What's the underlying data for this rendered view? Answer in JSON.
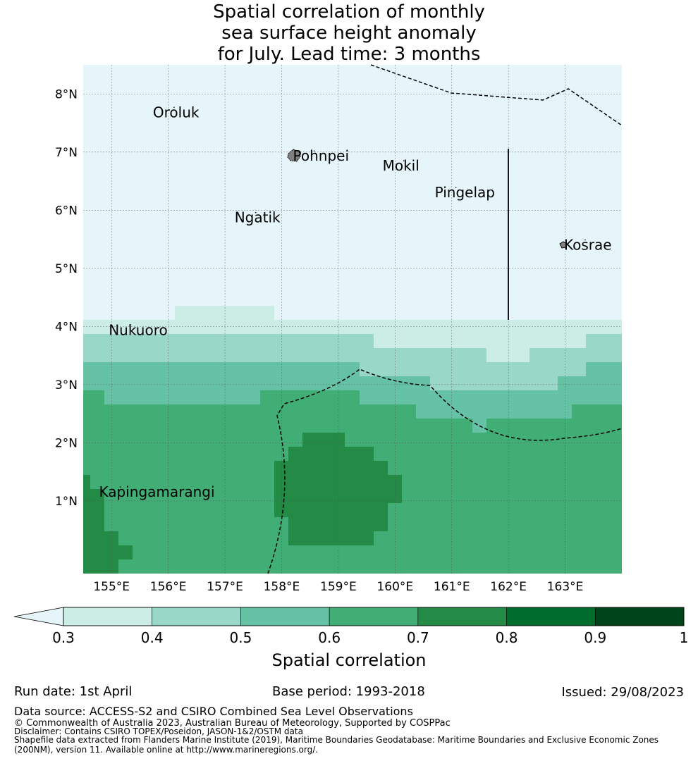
{
  "title": {
    "line1": "Spatial correlation of monthly",
    "line2": "sea surface height anomaly",
    "line3": "for July. Lead time: 3 months"
  },
  "map": {
    "lon_ticks": [
      "155°E",
      "156°E",
      "157°E",
      "158°E",
      "159°E",
      "160°E",
      "161°E",
      "162°E",
      "163°E"
    ],
    "lat_ticks": [
      "1°N",
      "2°N",
      "3°N",
      "4°N",
      "5°N",
      "6°N",
      "7°N",
      "8°N"
    ],
    "extent": {
      "lon_min": 154.5,
      "lon_max": 164.0,
      "lat_min": -0.25,
      "lat_max": 8.5
    },
    "places": [
      {
        "name": "Oroluk",
        "lon": 155.73,
        "lat": 7.6
      },
      {
        "name": "Pohnpei",
        "lon": 158.2,
        "lat": 6.85
      },
      {
        "name": "Mokil",
        "lon": 159.78,
        "lat": 6.68
      },
      {
        "name": "Pingelap",
        "lon": 160.7,
        "lat": 6.22
      },
      {
        "name": "Ngatik",
        "lon": 157.17,
        "lat": 5.79
      },
      {
        "name": "Kosrae",
        "lon": 162.98,
        "lat": 5.32
      },
      {
        "name": "Nukuoro",
        "lon": 154.95,
        "lat": 3.85
      },
      {
        "name": "Kapingamarangi",
        "lon": 154.78,
        "lat": 1.07
      }
    ],
    "colors": {
      "land": "#808080",
      "below_range": "#e5f5f9",
      "boundary": "#000000"
    }
  },
  "colorbar": {
    "label": "Spatial correlation",
    "ticks": [
      "0.3",
      "0.4",
      "0.5",
      "0.6",
      "0.7",
      "0.8",
      "0.9",
      "1"
    ],
    "colors": [
      "#ccece6",
      "#99d8c9",
      "#66c2a4",
      "#41ae76",
      "#238b45",
      "#006d2c",
      "#00441b"
    ],
    "under_color": "#e5f5f9"
  },
  "footer": {
    "run_date": "Run date: 1st April",
    "base_period": "Base period: 1993-2018",
    "issued": "Issued: 29/08/2023",
    "data_source": "Data source: ACCESS-S2 and CSIRO Combined Sea Level Observations",
    "copyright": "© Commonwealth of Australia 2023, Australian Bureau of Meteorology, Supported by COSPPac",
    "disclaimer": "Disclaimer: Contains CSIRO TOPEX/Poseidon, JASON-1&2/OSTM data",
    "shapefile_1": "Shapefile data extracted from Flanders Marine Institute (2019), Maritime Boundaries Geodatabase: Maritime Boundaries and Exclusive Economic Zones",
    "shapefile_2": "(200NM), version 11. Available online at http://www.marineregions.org/."
  }
}
